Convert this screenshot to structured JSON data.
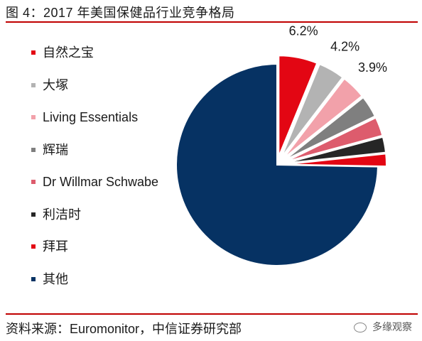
{
  "title": "图 4：2017 年美国保健品行业竞争格局",
  "source": "资料来源：Euromonitor，中信证券研究部",
  "watermark": "多缘观察",
  "chart_data": {
    "type": "pie",
    "legend_position": "left",
    "slices": [
      {
        "label": "自然之宝",
        "value": 6.2,
        "color": "#e30613",
        "data_label": "6.2%"
      },
      {
        "label": "大塚",
        "value": 4.2,
        "color": "#b3b3b3",
        "data_label": "4.2%"
      },
      {
        "label": "Living Essentials",
        "value": 3.9,
        "color": "#f2a1aa",
        "data_label": "3.9%"
      },
      {
        "label": "辉瑞",
        "value": 3.5,
        "color": "#7f7f7f",
        "data_label": ""
      },
      {
        "label": "Dr Willmar Schwabe",
        "value": 3.0,
        "color": "#dd5c6d",
        "data_label": ""
      },
      {
        "label": "利洁时",
        "value": 2.5,
        "color": "#262626",
        "data_label": ""
      },
      {
        "label": "拜耳",
        "value": 2.0,
        "color": "#e30613",
        "data_label": ""
      },
      {
        "label": "其他",
        "value": 74.7,
        "color": "#063263",
        "data_label": ""
      }
    ]
  }
}
